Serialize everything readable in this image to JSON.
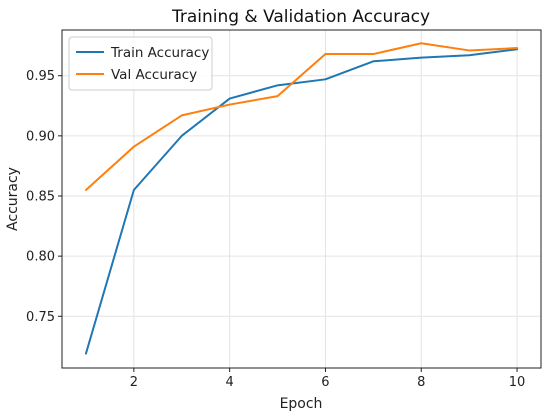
{
  "chart_data": {
    "type": "line",
    "title": "Training & Validation Accuracy",
    "xlabel": "Epoch",
    "ylabel": "Accuracy",
    "x": [
      1,
      2,
      3,
      4,
      5,
      6,
      7,
      8,
      9,
      10
    ],
    "xlim": [
      0.5,
      10.5
    ],
    "ylim": [
      0.707,
      0.988
    ],
    "xticks": [
      2,
      4,
      6,
      8,
      10
    ],
    "yticks": [
      0.75,
      0.8,
      0.85,
      0.9,
      0.95
    ],
    "grid": true,
    "legend_position": "upper-left",
    "series": [
      {
        "name": "Train Accuracy",
        "color": "#1f77b4",
        "values": [
          0.719,
          0.855,
          0.9,
          0.931,
          0.942,
          0.947,
          0.962,
          0.965,
          0.967,
          0.972
        ]
      },
      {
        "name": "Val Accuracy",
        "color": "#ff7f0e",
        "values": [
          0.855,
          0.891,
          0.917,
          0.926,
          0.933,
          0.968,
          0.968,
          0.977,
          0.971,
          0.973
        ]
      }
    ]
  }
}
